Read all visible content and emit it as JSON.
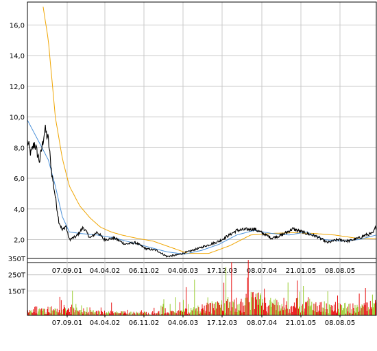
{
  "chart_data": [
    {
      "type": "line",
      "title": "",
      "xlabel": "",
      "ylabel": "",
      "ylim": [
        0.5,
        17.5
      ],
      "grid": true,
      "legend": "none",
      "yticks": [
        2.0,
        4.0,
        6.0,
        8.0,
        10.0,
        12.0,
        14.0,
        16.0
      ],
      "ytick_labels": [
        "2,0",
        "4,0",
        "6,0",
        "8,0",
        "10,0",
        "12,0",
        "14,0",
        "16,0"
      ],
      "xticks": [
        "07.09.01",
        "04.04.02",
        "06.11.02",
        "04.06.03",
        "17.12.03",
        "08.07.04",
        "21.01.05",
        "08.08.05"
      ],
      "series": [
        {
          "color": "#000000",
          "role": "price",
          "x": [
            0,
            0.01,
            0.02,
            0.035,
            0.05,
            0.06,
            0.07,
            0.08,
            0.09,
            0.1,
            0.11,
            0.12,
            0.14,
            0.16,
            0.18,
            0.2,
            0.22,
            0.25,
            0.28,
            0.31,
            0.34,
            0.37,
            0.4,
            0.43,
            0.46,
            0.5,
            0.55,
            0.6,
            0.65,
            0.7,
            0.73,
            0.76,
            0.8,
            0.83,
            0.86,
            0.89,
            0.92,
            0.95,
            0.97,
            0.99,
            1.0
          ],
          "values": [
            8.4,
            7.6,
            8.3,
            7.1,
            9.2,
            8.5,
            6.3,
            4.8,
            3.2,
            2.6,
            2.9,
            2.0,
            2.2,
            2.8,
            2.1,
            2.5,
            2.0,
            2.1,
            1.7,
            1.8,
            1.4,
            1.3,
            0.9,
            1.0,
            1.2,
            1.5,
            1.9,
            2.6,
            2.7,
            2.1,
            2.3,
            2.7,
            2.4,
            2.2,
            1.8,
            2.0,
            1.9,
            2.1,
            2.3,
            2.4,
            2.9
          ]
        },
        {
          "color": "#4a90d9",
          "role": "short moving average",
          "x": [
            0,
            0.03,
            0.06,
            0.08,
            0.1,
            0.12,
            0.15,
            0.2,
            0.25,
            0.3,
            0.35,
            0.4,
            0.45,
            0.5,
            0.55,
            0.6,
            0.65,
            0.7,
            0.75,
            0.8,
            0.85,
            0.9,
            0.95,
            1.0
          ],
          "values": [
            9.8,
            8.5,
            7.2,
            5.5,
            3.5,
            2.5,
            2.4,
            2.3,
            2.1,
            1.8,
            1.5,
            1.2,
            1.05,
            1.3,
            1.7,
            2.3,
            2.6,
            2.4,
            2.3,
            2.5,
            2.0,
            1.9,
            2.0,
            2.3
          ]
        },
        {
          "color": "#f0a500",
          "role": "long moving average",
          "x": [
            0.045,
            0.06,
            0.08,
            0.1,
            0.12,
            0.15,
            0.18,
            0.21,
            0.24,
            0.27,
            0.31,
            0.36,
            0.41,
            0.46,
            0.52,
            0.58,
            0.64,
            0.7,
            0.76,
            0.82,
            0.88,
            0.94,
            1.0
          ],
          "values": [
            17.2,
            15.0,
            10.0,
            7.3,
            5.5,
            4.2,
            3.4,
            2.8,
            2.5,
            2.3,
            2.1,
            1.9,
            1.5,
            1.1,
            1.1,
            1.6,
            2.3,
            2.4,
            2.45,
            2.4,
            2.3,
            2.1,
            2.05
          ]
        }
      ]
    },
    {
      "type": "bar",
      "title": "",
      "xlabel": "",
      "ylabel": "",
      "ylim": [
        0,
        350
      ],
      "grid": true,
      "legend": "none",
      "yticks": [
        150,
        250,
        350
      ],
      "ytick_labels": [
        "150T",
        "250T",
        "350T"
      ],
      "xticks": [
        "07.09.01",
        "04.04.02",
        "06.11.02",
        "04.06.03",
        "17.12.03",
        "08.07.04",
        "21.01.05",
        "08.08.05"
      ],
      "series": [
        {
          "color": "#e81010",
          "role": "volume (down days)"
        },
        {
          "color": "#9acd32",
          "role": "volume (up days)"
        }
      ],
      "volume_profile": {
        "x": [
          0,
          0.1,
          0.2,
          0.3,
          0.42,
          0.5,
          0.6,
          0.65,
          0.7,
          0.75,
          0.8,
          0.85,
          0.9,
          0.95,
          1.0
        ],
        "typical": [
          35,
          40,
          20,
          15,
          18,
          45,
          80,
          95,
          70,
          60,
          75,
          55,
          50,
          45,
          60
        ],
        "peak": [
          110,
          180,
          90,
          70,
          110,
          300,
          340,
          350,
          260,
          220,
          300,
          240,
          220,
          200,
          350
        ]
      }
    }
  ]
}
